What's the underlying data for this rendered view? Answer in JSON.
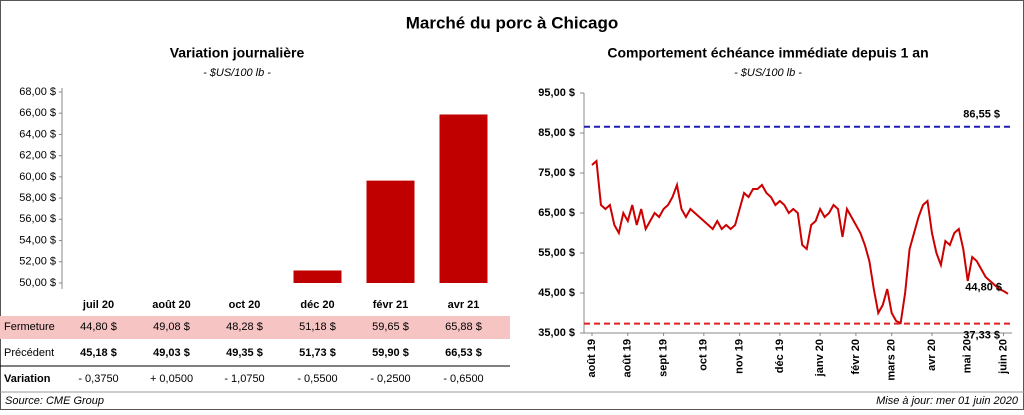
{
  "title": "Marché du porc à Chicago",
  "chart_data": [
    {
      "type": "bar",
      "title": "Variation journalière",
      "subtitle": "- $US/100 lb -",
      "categories": [
        "juil 20",
        "août 20",
        "oct 20",
        "déc 20",
        "févr 21",
        "avr 21"
      ],
      "values": [
        44.8,
        49.08,
        48.28,
        51.18,
        59.65,
        65.88
      ],
      "value_labels": [
        "44,80  $",
        "49,08  $",
        "48,28  $",
        "51,18  $",
        "59,65  $",
        "65,88  $"
      ],
      "color": "#c00000",
      "ylim": [
        50,
        68
      ],
      "yticks": [
        {
          "value": 50,
          "label": "50,00 $"
        },
        {
          "value": 52,
          "label": "52,00 $"
        },
        {
          "value": 54,
          "label": "54,00 $"
        },
        {
          "value": 56,
          "label": "56,00 $"
        },
        {
          "value": 58,
          "label": "58,00 $"
        },
        {
          "value": 60,
          "label": "60,00 $"
        },
        {
          "value": 62,
          "label": "62,00 $"
        },
        {
          "value": 64,
          "label": "64,00 $"
        },
        {
          "value": 66,
          "label": "66,00 $"
        },
        {
          "value": 68,
          "label": "68,00 $"
        }
      ]
    },
    {
      "type": "line",
      "title": "Comportement  échéance immédiate depuis 1 an",
      "subtitle": "- $US/100 lb -",
      "values": [
        77,
        78,
        67,
        66,
        67,
        62,
        60,
        65,
        63,
        67,
        62,
        66,
        61,
        63,
        65,
        64,
        66,
        67,
        69,
        72,
        66,
        64,
        66,
        65,
        64,
        63,
        62,
        61,
        63,
        61,
        62,
        61,
        62,
        66,
        70,
        69,
        71,
        71,
        72,
        70,
        69,
        67,
        68,
        67,
        65,
        66,
        65,
        57,
        56,
        62,
        63,
        66,
        64,
        65,
        67,
        66,
        59,
        66,
        64,
        62,
        60,
        57,
        53,
        46,
        40,
        42,
        46,
        40,
        38,
        37.5,
        45,
        56,
        60,
        64,
        67,
        68,
        60,
        55,
        52,
        58,
        57,
        60,
        61,
        56,
        48,
        54,
        53,
        51,
        49,
        48,
        47,
        46,
        45.5,
        44.8
      ],
      "last_value_label": "44,80 $",
      "color": "#cc0000",
      "xlim": [
        0,
        93
      ],
      "xticks": [
        {
          "value": 0,
          "label": "août 19"
        },
        {
          "value": 8,
          "label": "août 19"
        },
        {
          "value": 16,
          "label": "sept 19"
        },
        {
          "value": 25,
          "label": "oct 19"
        },
        {
          "value": 33,
          "label": "nov 19"
        },
        {
          "value": 42,
          "label": "déc 19"
        },
        {
          "value": 51,
          "label": "janv 20"
        },
        {
          "value": 59,
          "label": "févr 20"
        },
        {
          "value": 67,
          "label": "mars 20"
        },
        {
          "value": 76,
          "label": "avr 20"
        },
        {
          "value": 84,
          "label": "mai 20"
        },
        {
          "value": 92,
          "label": "juin 20"
        }
      ],
      "ylim": [
        35,
        95
      ],
      "yticks": [
        {
          "value": 35,
          "label": "35,00 $"
        },
        {
          "value": 45,
          "label": "45,00 $"
        },
        {
          "value": 55,
          "label": "55,00 $"
        },
        {
          "value": 65,
          "label": "65,00 $"
        },
        {
          "value": 75,
          "label": "75,00 $"
        },
        {
          "value": 85,
          "label": "85,00 $"
        },
        {
          "value": 95,
          "label": "95,00 $"
        }
      ],
      "reference_lines": [
        {
          "value": 86.55,
          "label": "86,55 $",
          "color": "#1f1fb4"
        },
        {
          "value": 37.33,
          "label": "37,33 $",
          "color": "#e02020"
        }
      ]
    }
  ],
  "table": {
    "rows": [
      {
        "label": "Fermeture"
      },
      {
        "label": "Précédent",
        "cells": [
          "45,18  $",
          "49,03  $",
          "49,35  $",
          "51,73  $",
          "59,90  $",
          "66,53  $"
        ]
      },
      {
        "label": "Variation",
        "cells": [
          "- 0,3750",
          "+ 0,0500",
          "- 1,0750",
          "- 0,5500",
          "- 0,2500",
          "- 0,6500"
        ]
      }
    ]
  },
  "footer": {
    "source": "Source: CME Group",
    "updated": "Mise à jour: mer 01 juin 2020"
  }
}
